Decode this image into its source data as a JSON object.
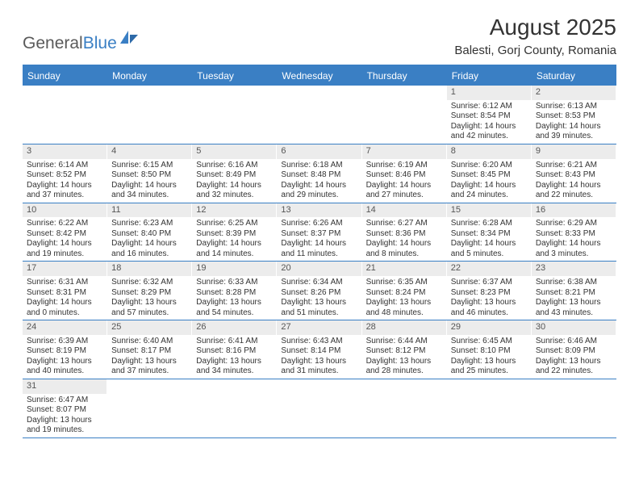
{
  "logo": {
    "general": "General",
    "blue": "Blue"
  },
  "title": "August 2025",
  "subtitle": "Balesti, Gorj County, Romania",
  "weekdays": [
    "Sunday",
    "Monday",
    "Tuesday",
    "Wednesday",
    "Thursday",
    "Friday",
    "Saturday"
  ],
  "colors": {
    "header_bg": "#3a7fc4",
    "header_text": "#ffffff",
    "daynum_bg": "#ececec",
    "border": "#3a7fc4",
    "text": "#333333"
  },
  "weeks": [
    [
      null,
      null,
      null,
      null,
      null,
      {
        "num": "1",
        "sunrise": "Sunrise: 6:12 AM",
        "sunset": "Sunset: 8:54 PM",
        "daylight": "Daylight: 14 hours and 42 minutes."
      },
      {
        "num": "2",
        "sunrise": "Sunrise: 6:13 AM",
        "sunset": "Sunset: 8:53 PM",
        "daylight": "Daylight: 14 hours and 39 minutes."
      }
    ],
    [
      {
        "num": "3",
        "sunrise": "Sunrise: 6:14 AM",
        "sunset": "Sunset: 8:52 PM",
        "daylight": "Daylight: 14 hours and 37 minutes."
      },
      {
        "num": "4",
        "sunrise": "Sunrise: 6:15 AM",
        "sunset": "Sunset: 8:50 PM",
        "daylight": "Daylight: 14 hours and 34 minutes."
      },
      {
        "num": "5",
        "sunrise": "Sunrise: 6:16 AM",
        "sunset": "Sunset: 8:49 PM",
        "daylight": "Daylight: 14 hours and 32 minutes."
      },
      {
        "num": "6",
        "sunrise": "Sunrise: 6:18 AM",
        "sunset": "Sunset: 8:48 PM",
        "daylight": "Daylight: 14 hours and 29 minutes."
      },
      {
        "num": "7",
        "sunrise": "Sunrise: 6:19 AM",
        "sunset": "Sunset: 8:46 PM",
        "daylight": "Daylight: 14 hours and 27 minutes."
      },
      {
        "num": "8",
        "sunrise": "Sunrise: 6:20 AM",
        "sunset": "Sunset: 8:45 PM",
        "daylight": "Daylight: 14 hours and 24 minutes."
      },
      {
        "num": "9",
        "sunrise": "Sunrise: 6:21 AM",
        "sunset": "Sunset: 8:43 PM",
        "daylight": "Daylight: 14 hours and 22 minutes."
      }
    ],
    [
      {
        "num": "10",
        "sunrise": "Sunrise: 6:22 AM",
        "sunset": "Sunset: 8:42 PM",
        "daylight": "Daylight: 14 hours and 19 minutes."
      },
      {
        "num": "11",
        "sunrise": "Sunrise: 6:23 AM",
        "sunset": "Sunset: 8:40 PM",
        "daylight": "Daylight: 14 hours and 16 minutes."
      },
      {
        "num": "12",
        "sunrise": "Sunrise: 6:25 AM",
        "sunset": "Sunset: 8:39 PM",
        "daylight": "Daylight: 14 hours and 14 minutes."
      },
      {
        "num": "13",
        "sunrise": "Sunrise: 6:26 AM",
        "sunset": "Sunset: 8:37 PM",
        "daylight": "Daylight: 14 hours and 11 minutes."
      },
      {
        "num": "14",
        "sunrise": "Sunrise: 6:27 AM",
        "sunset": "Sunset: 8:36 PM",
        "daylight": "Daylight: 14 hours and 8 minutes."
      },
      {
        "num": "15",
        "sunrise": "Sunrise: 6:28 AM",
        "sunset": "Sunset: 8:34 PM",
        "daylight": "Daylight: 14 hours and 5 minutes."
      },
      {
        "num": "16",
        "sunrise": "Sunrise: 6:29 AM",
        "sunset": "Sunset: 8:33 PM",
        "daylight": "Daylight: 14 hours and 3 minutes."
      }
    ],
    [
      {
        "num": "17",
        "sunrise": "Sunrise: 6:31 AM",
        "sunset": "Sunset: 8:31 PM",
        "daylight": "Daylight: 14 hours and 0 minutes."
      },
      {
        "num": "18",
        "sunrise": "Sunrise: 6:32 AM",
        "sunset": "Sunset: 8:29 PM",
        "daylight": "Daylight: 13 hours and 57 minutes."
      },
      {
        "num": "19",
        "sunrise": "Sunrise: 6:33 AM",
        "sunset": "Sunset: 8:28 PM",
        "daylight": "Daylight: 13 hours and 54 minutes."
      },
      {
        "num": "20",
        "sunrise": "Sunrise: 6:34 AM",
        "sunset": "Sunset: 8:26 PM",
        "daylight": "Daylight: 13 hours and 51 minutes."
      },
      {
        "num": "21",
        "sunrise": "Sunrise: 6:35 AM",
        "sunset": "Sunset: 8:24 PM",
        "daylight": "Daylight: 13 hours and 48 minutes."
      },
      {
        "num": "22",
        "sunrise": "Sunrise: 6:37 AM",
        "sunset": "Sunset: 8:23 PM",
        "daylight": "Daylight: 13 hours and 46 minutes."
      },
      {
        "num": "23",
        "sunrise": "Sunrise: 6:38 AM",
        "sunset": "Sunset: 8:21 PM",
        "daylight": "Daylight: 13 hours and 43 minutes."
      }
    ],
    [
      {
        "num": "24",
        "sunrise": "Sunrise: 6:39 AM",
        "sunset": "Sunset: 8:19 PM",
        "daylight": "Daylight: 13 hours and 40 minutes."
      },
      {
        "num": "25",
        "sunrise": "Sunrise: 6:40 AM",
        "sunset": "Sunset: 8:17 PM",
        "daylight": "Daylight: 13 hours and 37 minutes."
      },
      {
        "num": "26",
        "sunrise": "Sunrise: 6:41 AM",
        "sunset": "Sunset: 8:16 PM",
        "daylight": "Daylight: 13 hours and 34 minutes."
      },
      {
        "num": "27",
        "sunrise": "Sunrise: 6:43 AM",
        "sunset": "Sunset: 8:14 PM",
        "daylight": "Daylight: 13 hours and 31 minutes."
      },
      {
        "num": "28",
        "sunrise": "Sunrise: 6:44 AM",
        "sunset": "Sunset: 8:12 PM",
        "daylight": "Daylight: 13 hours and 28 minutes."
      },
      {
        "num": "29",
        "sunrise": "Sunrise: 6:45 AM",
        "sunset": "Sunset: 8:10 PM",
        "daylight": "Daylight: 13 hours and 25 minutes."
      },
      {
        "num": "30",
        "sunrise": "Sunrise: 6:46 AM",
        "sunset": "Sunset: 8:09 PM",
        "daylight": "Daylight: 13 hours and 22 minutes."
      }
    ],
    [
      {
        "num": "31",
        "sunrise": "Sunrise: 6:47 AM",
        "sunset": "Sunset: 8:07 PM",
        "daylight": "Daylight: 13 hours and 19 minutes."
      },
      null,
      null,
      null,
      null,
      null,
      null
    ]
  ]
}
